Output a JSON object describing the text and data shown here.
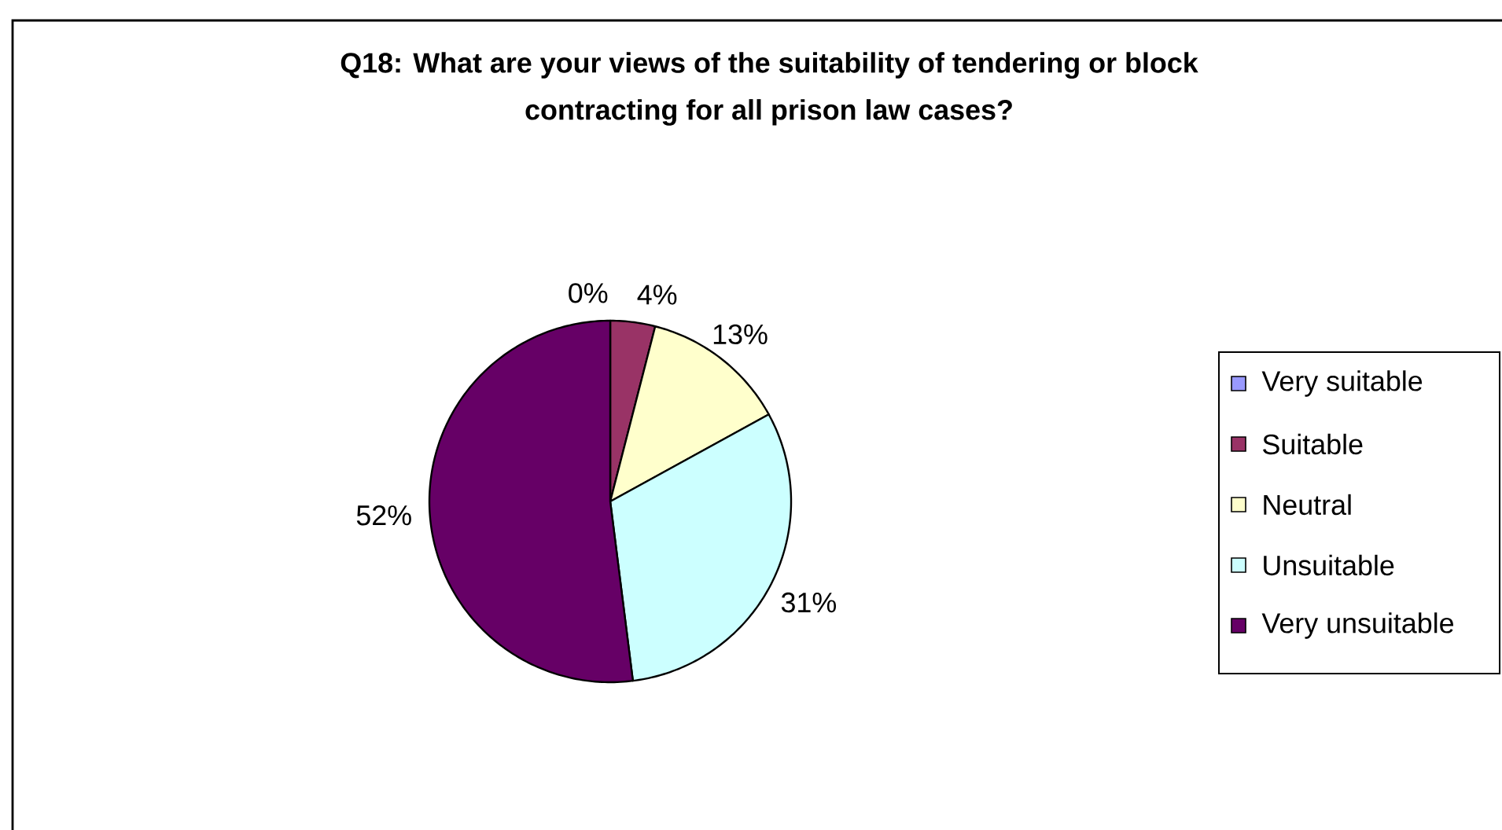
{
  "chart_data": {
    "type": "pie",
    "title": "Q18: What are your views of the suitability of tendering or block contracting for all prison law cases?",
    "categories": [
      "Very suitable",
      "Suitable",
      "Neutral",
      "Unsuitable",
      "Very unsuitable"
    ],
    "values": [
      0,
      4,
      13,
      31,
      52
    ],
    "colors": [
      "#9999ff",
      "#993366",
      "#ffffcc",
      "#ccffff",
      "#660066"
    ],
    "value_labels": [
      "0%",
      "4%",
      "13%",
      "31%",
      "52%"
    ],
    "legend": "right"
  }
}
